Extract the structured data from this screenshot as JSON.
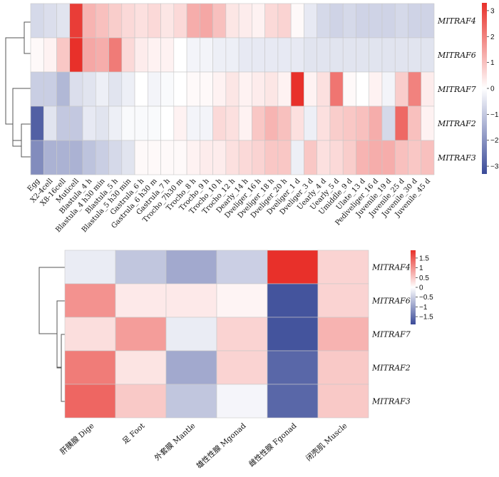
{
  "colors": {
    "low": "#3a4a98",
    "mid": "#ffffff",
    "high": "#e8302a"
  },
  "chart_data": [
    {
      "type": "heatmap",
      "rows": [
        "MITRAF4",
        "MITRAF6",
        "MITRAF7",
        "MITRAF2",
        "MITRAF3"
      ],
      "columns": [
        "Egg",
        "X2-4cell",
        "X8-16cell",
        "Muticell",
        "Blastula_4 h",
        "Blastula_4 h30 min",
        "Blastula_5 h",
        "Blastula_5 h30 min",
        "Gastrula_6 h",
        "Gastrula_6 h30 m",
        "Gastrula_7 h",
        "Trocho_7h30 m",
        "Trocho_8 h",
        "Trocho_9 h",
        "Trocho_10 h",
        "Trocho_12 h",
        "Dearly_14 h",
        "Dveliger_16 h",
        "Dveliger_18 h",
        "Dveliger_20 h",
        "Dveliger_1 d",
        "Dveliger_3 d",
        "Uearly_4 d",
        "Uearly_5 d",
        "Umiddle_9 d",
        "Ulate_13 d",
        "Pediveliger_16 d",
        "Juvenile_19 d",
        "Juvenile_25 d",
        "Juvenile_30 d",
        "Juvenile_45 d"
      ],
      "values": [
        [
          -0.7,
          -0.6,
          -0.5,
          3.1,
          1.2,
          1.0,
          0.8,
          0.6,
          0.5,
          0.6,
          0.4,
          0.6,
          1.3,
          1.4,
          1.0,
          0.4,
          0.3,
          0.2,
          0.6,
          0.7,
          0.1,
          -0.4,
          -0.7,
          -0.8,
          -0.7,
          -0.8,
          -0.8,
          -0.8,
          -0.7,
          -0.8,
          -0.8
        ],
        [
          0.1,
          0.2,
          0.9,
          3.3,
          1.4,
          1.3,
          2.1,
          0.6,
          0.3,
          0.2,
          0.2,
          0.0,
          -0.2,
          -0.2,
          -0.3,
          -0.3,
          -0.4,
          -0.4,
          -0.4,
          -0.4,
          -0.4,
          -0.5,
          -0.5,
          -0.5,
          -0.5,
          -0.5,
          -0.5,
          -0.5,
          -0.5,
          -0.5,
          -0.5
        ],
        [
          -0.9,
          -0.9,
          -1.3,
          -0.6,
          -0.5,
          -0.3,
          -0.5,
          -0.3,
          0.0,
          -0.2,
          -0.1,
          0.0,
          0.1,
          0.1,
          0.2,
          0.4,
          0.2,
          0.3,
          0.4,
          0.2,
          3.3,
          0.2,
          0.5,
          2.2,
          0.1,
          0.0,
          0.2,
          -0.2,
          0.8,
          2.0,
          0.3
        ],
        [
          -2.9,
          -0.5,
          -1.0,
          -1.0,
          -0.4,
          -0.5,
          -0.3,
          -0.1,
          -0.1,
          -0.1,
          0.0,
          0.2,
          -0.2,
          -0.2,
          0.6,
          0.5,
          0.2,
          0.9,
          1.2,
          1.0,
          0.5,
          -0.3,
          0.5,
          0.8,
          0.9,
          1.0,
          1.3,
          -0.7,
          2.4,
          1.0,
          0.2
        ],
        [
          -2.1,
          -1.4,
          -1.4,
          -1.4,
          -1.1,
          -0.9,
          -0.7,
          -0.5,
          0.1,
          0.1,
          0.1,
          0.1,
          0.2,
          0.3,
          0.3,
          0.5,
          0.6,
          0.7,
          0.9,
          0.9,
          -0.3,
          0.9,
          0.5,
          0.6,
          0.8,
          1.2,
          1.3,
          1.3,
          1.0,
          0.9,
          1.0
        ]
      ],
      "colorbar_ticks": [
        "3",
        "2",
        "1",
        "0",
        "−1",
        "−2",
        "−3"
      ],
      "vmin": -3.3,
      "vmax": 3.3
    },
    {
      "type": "heatmap",
      "rows": [
        "MITRAF4",
        "MITRAF6",
        "MITRAF7",
        "MITRAF2",
        "MITRAF3"
      ],
      "columns": [
        "肝胰腺 Dige",
        "足 Foot",
        "外套膜 Mantle",
        "雄性性腺 Mgonad",
        "雌性性腺 Fgonad",
        "闭壳肌 Muscle"
      ],
      "values": [
        [
          -0.2,
          -0.6,
          -0.9,
          -0.5,
          1.95,
          0.4
        ],
        [
          1.0,
          0.2,
          0.2,
          0.1,
          -1.8,
          0.4
        ],
        [
          0.3,
          0.9,
          -0.2,
          0.4,
          -1.8,
          0.7
        ],
        [
          1.2,
          0.25,
          -0.9,
          0.4,
          -1.6,
          0.5
        ],
        [
          1.4,
          0.5,
          -0.6,
          -0.1,
          -1.6,
          0.5
        ]
      ],
      "colorbar_ticks": [
        "1.5",
        "1",
        "0.5",
        "0",
        "−0.5",
        "−1",
        "−1.5"
      ],
      "colorbar_tick_values": [
        1.5,
        1,
        0.5,
        0,
        -0.5,
        -1,
        -1.5
      ],
      "vmin": -1.9,
      "vmax": 1.9
    }
  ]
}
